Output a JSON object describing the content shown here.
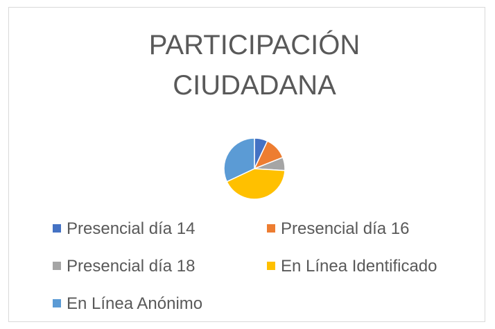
{
  "chart_data": {
    "type": "pie",
    "title": "PARTICIPACIÓN CIUDADANA",
    "categories": [
      "Presencial día 14",
      "Presencial día 16",
      "Presencial día 18",
      "En Línea Identificado",
      "En Línea Anónimo"
    ],
    "values": [
      7,
      12,
      7,
      42,
      32
    ],
    "colors": [
      "#4472c4",
      "#ed7d31",
      "#a5a5a5",
      "#ffc000",
      "#5b9bd5"
    ],
    "legend": "bottom"
  }
}
